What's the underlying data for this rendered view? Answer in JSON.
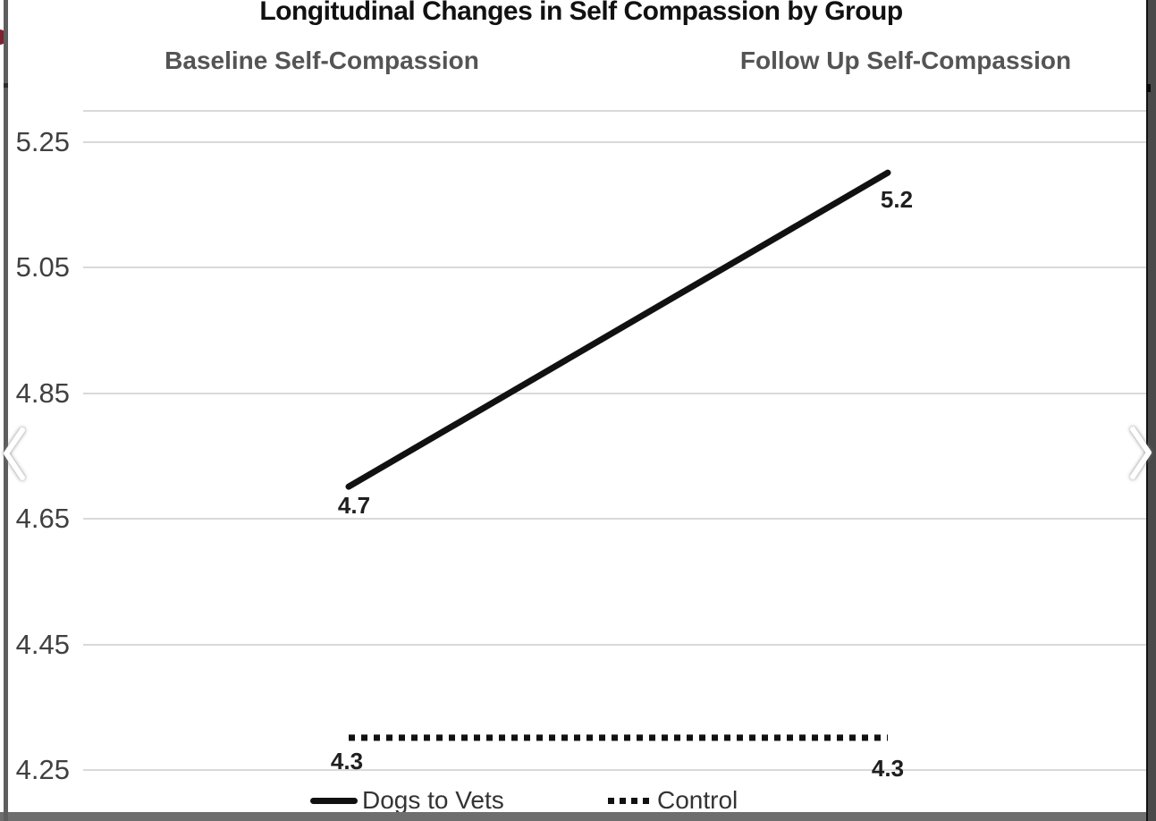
{
  "chart_data": {
    "type": "line",
    "title": "Longitudinal Changes in Self Compassion by Group",
    "categories": [
      "Baseline Self-Compassion",
      "Follow Up Self-Compassion"
    ],
    "series": [
      {
        "name": "Dogs to Vets",
        "style": "solid",
        "values": [
          4.7,
          5.2
        ],
        "data_labels": [
          "4.7",
          "5.2"
        ]
      },
      {
        "name": "Control",
        "style": "dotted",
        "values": [
          4.3,
          4.3
        ],
        "data_labels": [
          "4.3",
          "4.3"
        ]
      }
    ],
    "ytick_labels": [
      "5.25",
      "5.05",
      "4.85",
      "4.65",
      "4.45",
      "4.25"
    ],
    "ytick_values": [
      5.25,
      5.05,
      4.85,
      4.65,
      4.45,
      4.25
    ],
    "ylim": [
      4.25,
      5.3
    ],
    "grid": true,
    "legend_position": "bottom",
    "line_color": "#111111"
  },
  "viewer": {
    "prev_icon": "chevron-left",
    "next_icon": "chevron-right"
  },
  "colors": {
    "grid": "#d9d9d9",
    "tick_text": "#404040",
    "header_text": "#545454",
    "title_text": "#111111",
    "series_line": "#111111",
    "chrome_left_strip": "#5e5e5e",
    "chrome_right_strip": "#4a4a4a",
    "chrome_bottom_bar": "#6e6e6e",
    "red_dot": "#7d2332"
  }
}
